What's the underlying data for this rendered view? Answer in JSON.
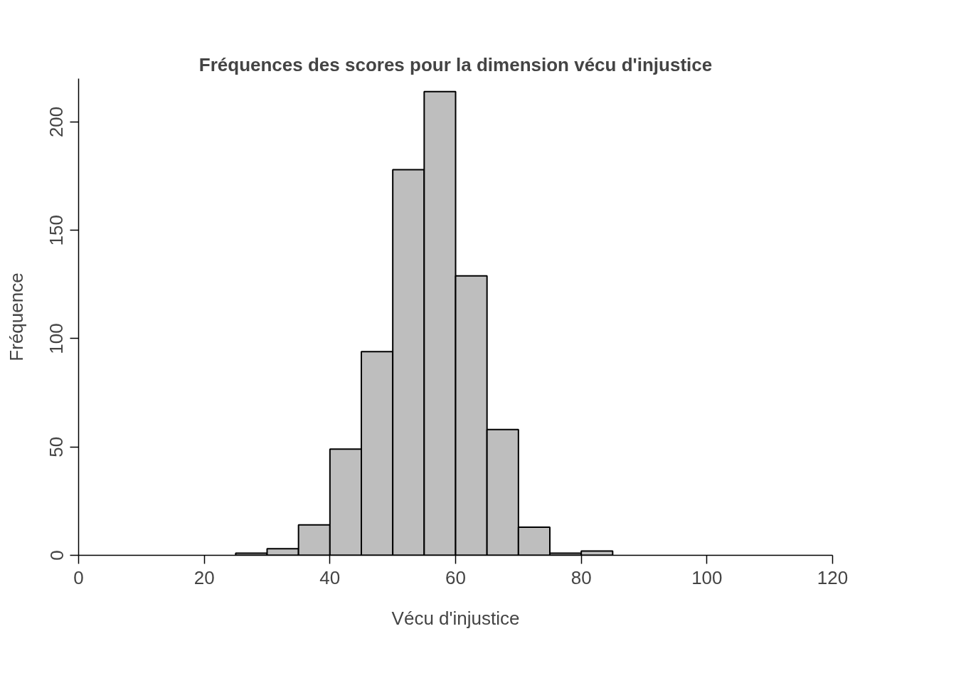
{
  "chart_data": {
    "type": "histogram",
    "title": "Fréquences des scores pour la dimension vécu d'injustice",
    "xlabel": "Vécu d'injustice",
    "ylabel": "Fréquence",
    "bins": [
      25,
      30,
      35,
      40,
      45,
      50,
      55,
      60,
      65,
      70,
      75,
      80,
      85
    ],
    "values": [
      1,
      3,
      14,
      49,
      94,
      178,
      214,
      129,
      58,
      13,
      1,
      2
    ],
    "color": "#bebebe",
    "xlim": [
      0,
      120
    ],
    "xticks": [
      0,
      20,
      40,
      60,
      80,
      100,
      120
    ],
    "ylim": [
      0,
      220
    ],
    "yticks": [
      0,
      50,
      100,
      150,
      200
    ],
    "grid": false
  }
}
